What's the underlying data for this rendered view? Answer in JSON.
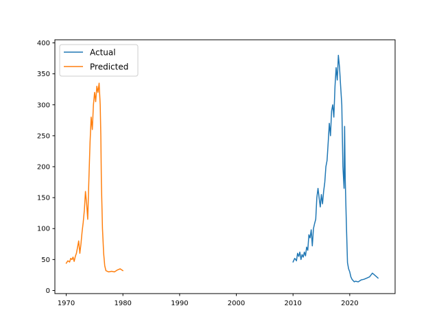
{
  "chart_data": {
    "type": "line",
    "title": "",
    "xlabel": "",
    "ylabel": "",
    "xlim": [
      1968,
      2028
    ],
    "ylim": [
      -5,
      405
    ],
    "x_ticks": [
      1970,
      1980,
      1990,
      2000,
      2010,
      2020
    ],
    "y_ticks": [
      0,
      50,
      100,
      150,
      200,
      250,
      300,
      350,
      400
    ],
    "grid": false,
    "legend": {
      "position": "top-left"
    },
    "series": [
      {
        "name": "Actual",
        "color": "#1f77b4",
        "points": [
          [
            2010.0,
            46
          ],
          [
            2010.3,
            52
          ],
          [
            2010.6,
            48
          ],
          [
            2010.8,
            60
          ],
          [
            2011.0,
            55
          ],
          [
            2011.2,
            62
          ],
          [
            2011.4,
            50
          ],
          [
            2011.6,
            58
          ],
          [
            2011.8,
            54
          ],
          [
            2012.0,
            62
          ],
          [
            2012.2,
            56
          ],
          [
            2012.4,
            70
          ],
          [
            2012.6,
            65
          ],
          [
            2012.8,
            90
          ],
          [
            2013.0,
            85
          ],
          [
            2013.2,
            98
          ],
          [
            2013.4,
            72
          ],
          [
            2013.6,
            100
          ],
          [
            2013.8,
            108
          ],
          [
            2014.0,
            115
          ],
          [
            2014.2,
            150
          ],
          [
            2014.4,
            165
          ],
          [
            2014.6,
            150
          ],
          [
            2014.8,
            135
          ],
          [
            2015.0,
            155
          ],
          [
            2015.2,
            140
          ],
          [
            2015.4,
            160
          ],
          [
            2015.6,
            175
          ],
          [
            2015.8,
            200
          ],
          [
            2016.0,
            210
          ],
          [
            2016.2,
            240
          ],
          [
            2016.4,
            270
          ],
          [
            2016.6,
            250
          ],
          [
            2016.8,
            290
          ],
          [
            2017.0,
            300
          ],
          [
            2017.2,
            280
          ],
          [
            2017.4,
            330
          ],
          [
            2017.6,
            360
          ],
          [
            2017.8,
            340
          ],
          [
            2018.0,
            380
          ],
          [
            2018.2,
            360
          ],
          [
            2018.4,
            330
          ],
          [
            2018.6,
            300
          ],
          [
            2018.8,
            200
          ],
          [
            2019.0,
            165
          ],
          [
            2019.1,
            265
          ],
          [
            2019.2,
            180
          ],
          [
            2019.4,
            110
          ],
          [
            2019.6,
            45
          ],
          [
            2019.8,
            35
          ],
          [
            2020.0,
            30
          ],
          [
            2020.2,
            22
          ],
          [
            2020.4,
            18
          ],
          [
            2020.6,
            16
          ],
          [
            2020.8,
            14
          ],
          [
            2021.0,
            15
          ],
          [
            2021.5,
            14
          ],
          [
            2022.0,
            17
          ],
          [
            2022.5,
            18
          ],
          [
            2023.0,
            20
          ],
          [
            2023.5,
            22
          ],
          [
            2024.0,
            28
          ],
          [
            2024.5,
            24
          ],
          [
            2025.0,
            20
          ]
        ]
      },
      {
        "name": "Predicted",
        "color": "#ff7f0e",
        "points": [
          [
            1970.0,
            44
          ],
          [
            1970.3,
            48
          ],
          [
            1970.6,
            46
          ],
          [
            1970.8,
            52
          ],
          [
            1971.0,
            50
          ],
          [
            1971.2,
            54
          ],
          [
            1971.4,
            47
          ],
          [
            1971.6,
            55
          ],
          [
            1971.8,
            60
          ],
          [
            1972.0,
            70
          ],
          [
            1972.2,
            80
          ],
          [
            1972.4,
            60
          ],
          [
            1972.6,
            75
          ],
          [
            1972.8,
            95
          ],
          [
            1973.0,
            110
          ],
          [
            1973.2,
            130
          ],
          [
            1973.4,
            160
          ],
          [
            1973.6,
            140
          ],
          [
            1973.8,
            115
          ],
          [
            1974.0,
            180
          ],
          [
            1974.2,
            240
          ],
          [
            1974.4,
            280
          ],
          [
            1974.6,
            260
          ],
          [
            1974.8,
            300
          ],
          [
            1975.0,
            320
          ],
          [
            1975.2,
            305
          ],
          [
            1975.4,
            330
          ],
          [
            1975.6,
            320
          ],
          [
            1975.8,
            335
          ],
          [
            1976.0,
            300
          ],
          [
            1976.1,
            250
          ],
          [
            1976.2,
            175
          ],
          [
            1976.4,
            100
          ],
          [
            1976.6,
            60
          ],
          [
            1976.8,
            40
          ],
          [
            1977.0,
            32
          ],
          [
            1977.5,
            30
          ],
          [
            1978.0,
            31
          ],
          [
            1978.5,
            30
          ],
          [
            1979.0,
            33
          ],
          [
            1979.5,
            35
          ],
          [
            1980.0,
            32
          ]
        ]
      }
    ]
  }
}
